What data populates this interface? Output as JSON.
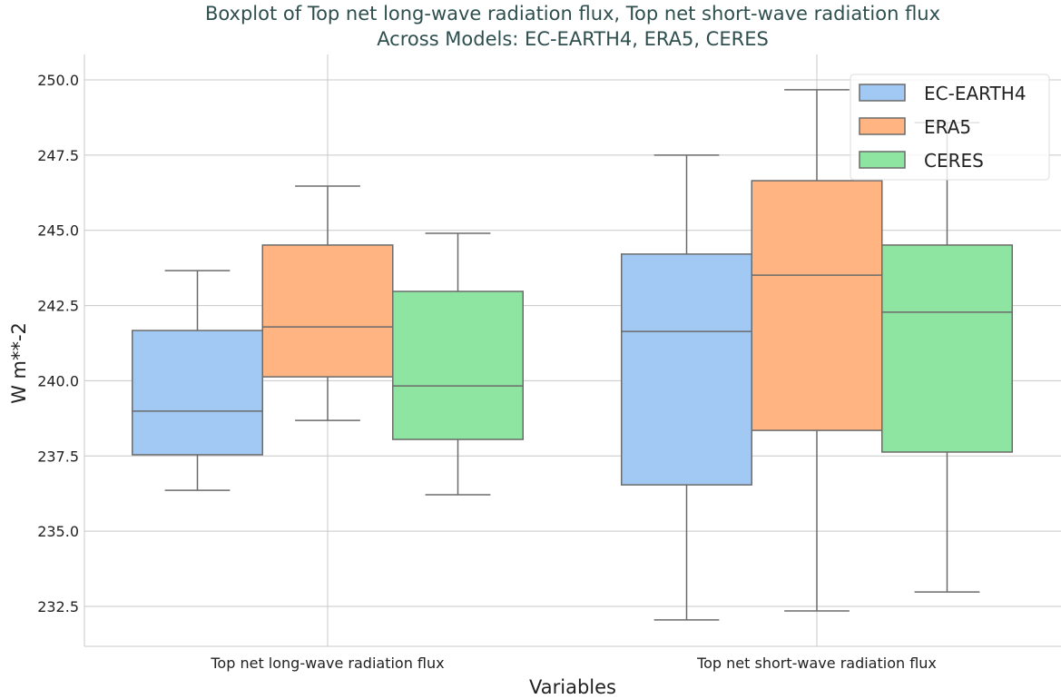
{
  "chart_data": {
    "type": "boxplot",
    "title": "Boxplot of Top net long-wave radiation flux, Top net short-wave radiation flux\nAcross Models: EC-EARTH4, ERA5, CERES",
    "xlabel": "Variables",
    "ylabel": "W m**-2",
    "ylim": [
      231.15,
      250.8
    ],
    "yticks": [
      "232.5",
      "235.0",
      "237.5",
      "240.0",
      "242.5",
      "245.0",
      "247.5",
      "250.0"
    ],
    "categories": [
      "Top net long-wave radiation flux",
      "Top net short-wave radiation flux"
    ],
    "grid": true,
    "legend_position": "top-right",
    "series": [
      {
        "name": "EC-EARTH4",
        "color": "#a1c9f4",
        "boxes": [
          {
            "whislo": 236.36,
            "q1": 237.54,
            "med": 238.99,
            "q3": 241.67,
            "whishi": 243.66
          },
          {
            "whislo": 232.05,
            "q1": 236.54,
            "med": 241.64,
            "q3": 244.21,
            "whishi": 247.5
          }
        ]
      },
      {
        "name": "ERA5",
        "color": "#ffb482",
        "boxes": [
          {
            "whislo": 238.68,
            "q1": 240.13,
            "med": 241.79,
            "q3": 244.51,
            "whishi": 246.47
          },
          {
            "whislo": 232.35,
            "q1": 238.35,
            "med": 243.51,
            "q3": 246.65,
            "whishi": 249.67
          }
        ]
      },
      {
        "name": "CERES",
        "color": "#8de5a1",
        "boxes": [
          {
            "whislo": 236.21,
            "q1": 238.05,
            "med": 239.83,
            "q3": 242.97,
            "whishi": 244.9
          },
          {
            "whislo": 232.98,
            "q1": 237.63,
            "med": 242.28,
            "q3": 244.51,
            "whishi": 248.58
          }
        ]
      }
    ]
  }
}
